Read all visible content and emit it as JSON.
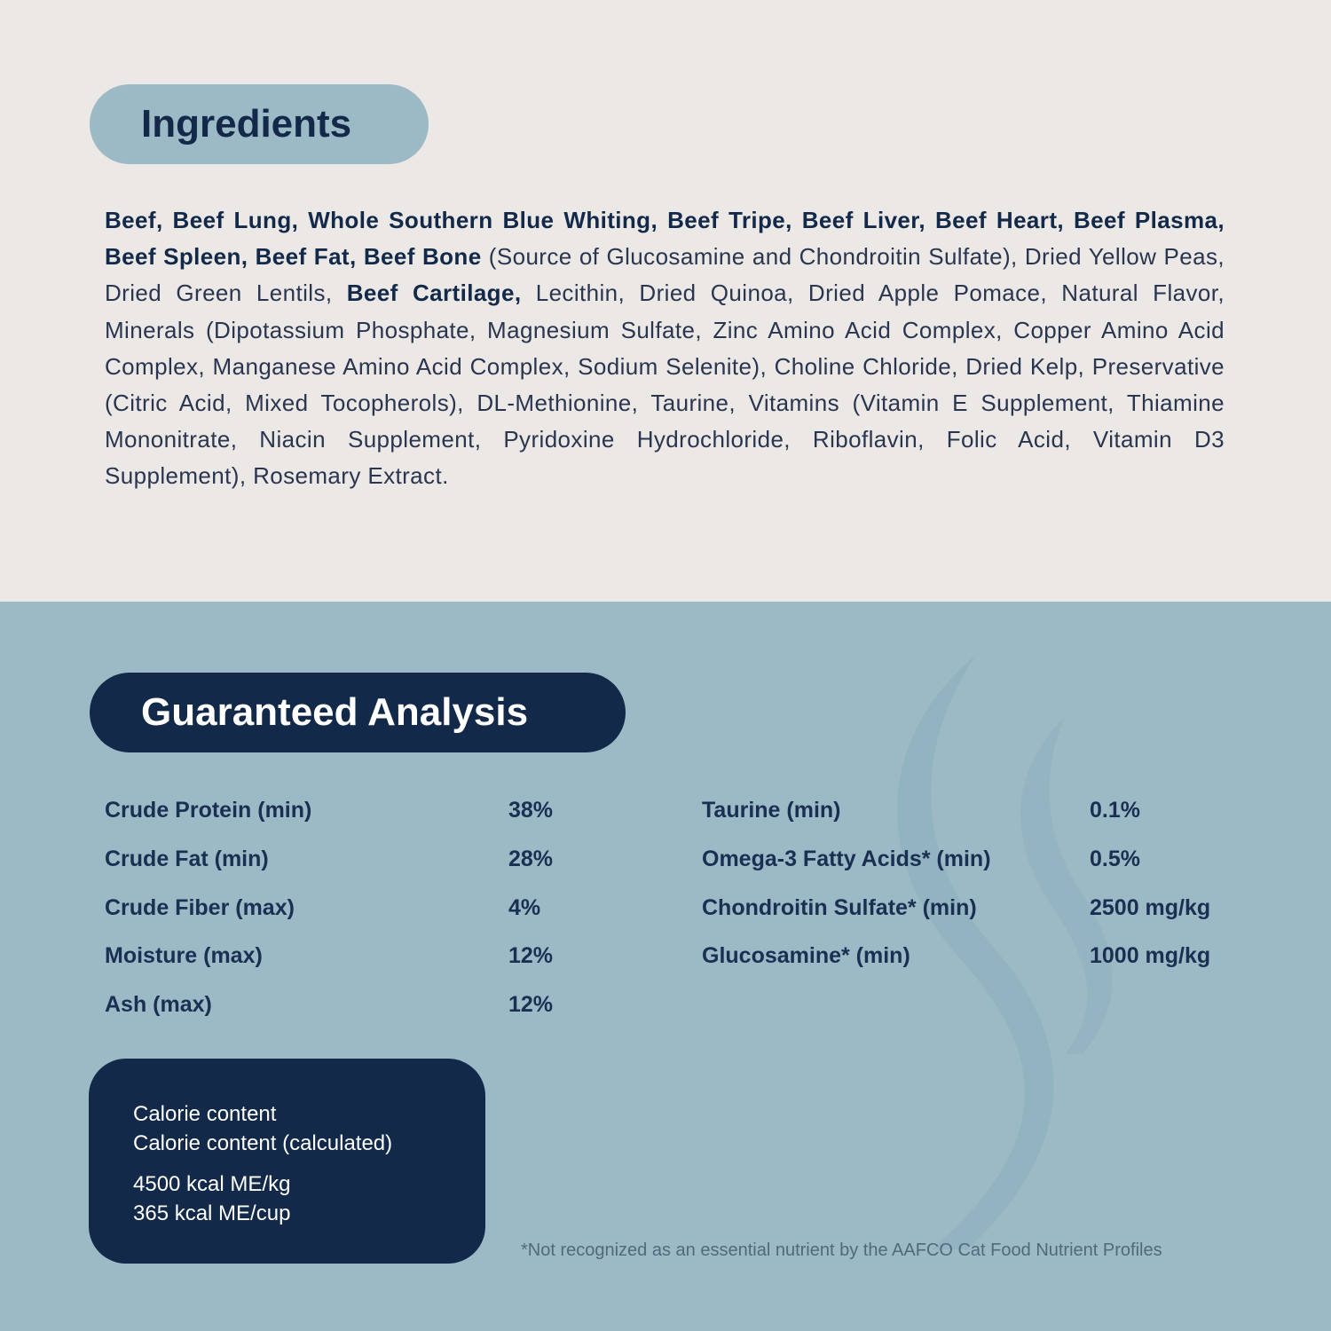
{
  "ingredients": {
    "title": "Ingredients",
    "segments": [
      {
        "text": "Beef, Beef Lung, Whole Southern Blue Whiting, Beef Tripe, Beef Liver, Beef Heart, Beef Plasma, Beef Spleen, Beef Fat, Beef Bone",
        "bold": true
      },
      {
        "text": " (Source of Glucosamine and Chondroitin Sulfate), Dried Yellow Peas, Dried Green Lentils, ",
        "bold": false
      },
      {
        "text": "Beef Cartilage,",
        "bold": true
      },
      {
        "text": " Lecithin, Dried Quinoa, Dried Apple Pomace, Natural Flavor, Minerals (Dipotassium Phosphate, Magnesium Sulfate, Zinc Amino Acid Complex, Copper Amino Acid Complex, Manganese Amino Acid Complex, Sodium Selenite), Choline Chloride, Dried Kelp, Preservative (Citric Acid, Mixed Tocopherols), DL-Methionine, Taurine, Vitamins (Vitamin E Supplement, Thiamine Mononitrate, Niacin Supplement, Pyridoxine Hydrochloride, Riboflavin, Folic Acid, Vitamin D3 Supplement), Rosemary Extract.",
        "bold": false
      }
    ]
  },
  "analysis": {
    "title": "Guaranteed Analysis",
    "left": [
      {
        "label": "Crude Protein (min)",
        "value": "38%"
      },
      {
        "label": "Crude Fat (min)",
        "value": "28%"
      },
      {
        "label": "Crude Fiber (max)",
        "value": "4%"
      },
      {
        "label": "Moisture (max)",
        "value": "12%"
      },
      {
        "label": "Ash (max)",
        "value": "12%"
      }
    ],
    "right": [
      {
        "label": "Taurine (min)",
        "value": "0.1%"
      },
      {
        "label": "Omega-3 Fatty Acids* (min)",
        "value": "0.5%"
      },
      {
        "label": "Chondroitin Sulfate* (min)",
        "value": "2500 mg/kg"
      },
      {
        "label": "Glucosamine* (min)",
        "value": "1000 mg/kg"
      }
    ]
  },
  "calorie": {
    "line1": "Calorie content",
    "line2": "Calorie content (calculated)",
    "line3": "4500 kcal ME/kg",
    "line4": "365 kcal ME/cup"
  },
  "footnote": "*Not recognized as an essential nutrient by the AAFCO Cat Food Nutrient Profiles",
  "colors": {
    "navy": "#12294a",
    "light_blue": "#9bbac6",
    "cream": "#ece8e5"
  }
}
